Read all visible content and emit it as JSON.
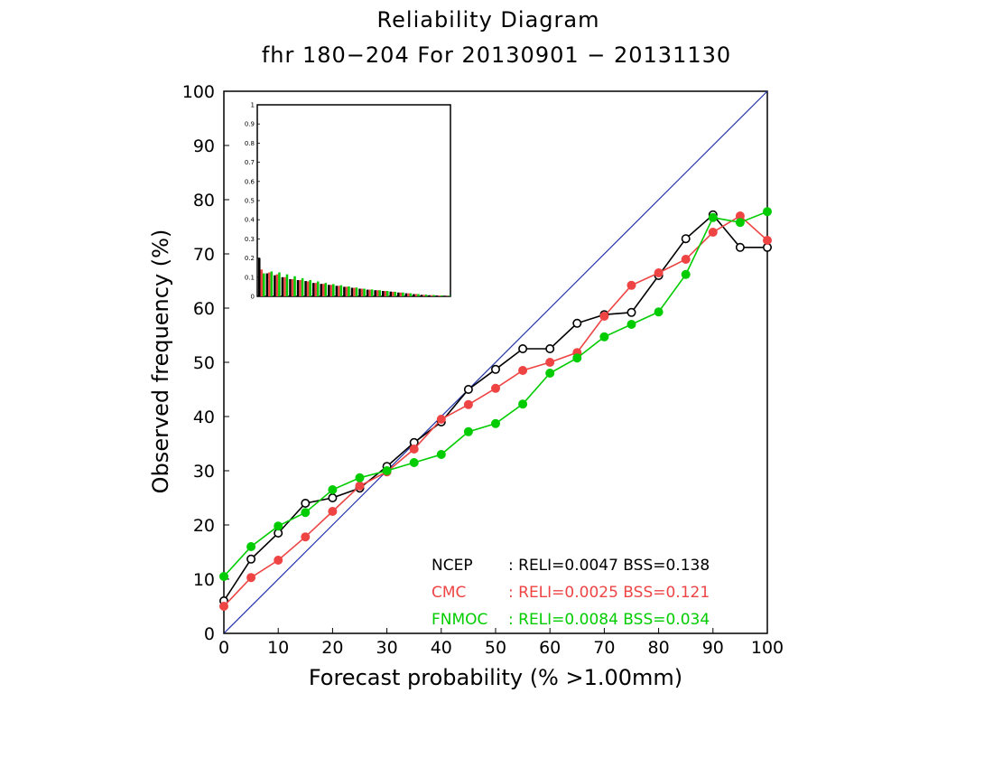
{
  "chart_data": {
    "type": "line",
    "title": "Reliability Diagram",
    "subtitle": "fhr 180−204 For 20130901 − 20131130",
    "xlabel": "Forecast probability (% >1.00mm)",
    "ylabel": "Observed frequency (%)",
    "xlim": [
      0,
      100
    ],
    "ylim": [
      0,
      100
    ],
    "x_ticks": [
      "0",
      "10",
      "20",
      "30",
      "40",
      "50",
      "60",
      "70",
      "80",
      "90",
      "100"
    ],
    "y_ticks": [
      "0",
      "10",
      "20",
      "30",
      "40",
      "50",
      "60",
      "70",
      "80",
      "90",
      "100"
    ],
    "grid": false,
    "diagonal_color": "#2233aa",
    "series": [
      {
        "name": "NCEP",
        "color": "#000000",
        "marker": "open-circle",
        "x": [
          0,
          5,
          10,
          15,
          20,
          25,
          30,
          35,
          40,
          45,
          50,
          55,
          60,
          65,
          70,
          75,
          80,
          85,
          90,
          95,
          100
        ],
        "y": [
          6,
          13.7,
          18.5,
          24,
          25,
          26.8,
          30.8,
          35.2,
          39,
          45,
          48.7,
          52.5,
          52.5,
          57.2,
          58.8,
          59.2,
          66,
          72.8,
          77.2,
          71.2,
          71.2
        ],
        "stats": ": RELI=0.0047  BSS=0.138"
      },
      {
        "name": "CMC",
        "color": "#ee4444",
        "marker": "filled-circle",
        "x": [
          0,
          5,
          10,
          15,
          20,
          25,
          30,
          35,
          40,
          45,
          50,
          55,
          60,
          65,
          70,
          75,
          80,
          85,
          90,
          95,
          100
        ],
        "y": [
          5,
          10.3,
          13.5,
          17.8,
          22.5,
          27.2,
          29.8,
          34,
          39.5,
          42.2,
          45.2,
          48.5,
          50,
          51.8,
          58.5,
          64.2,
          66.5,
          69,
          74,
          77,
          72.5
        ],
        "stats": ": RELI=0.0025  BSS=0.121"
      },
      {
        "name": "FNMOC",
        "color": "#00cc00",
        "marker": "filled-circle",
        "x": [
          0,
          5,
          10,
          15,
          20,
          25,
          30,
          35,
          40,
          45,
          50,
          55,
          60,
          65,
          70,
          75,
          80,
          85,
          90,
          95,
          100
        ],
        "y": [
          10.5,
          16,
          19.8,
          22.3,
          26.5,
          28.7,
          30,
          31.5,
          33,
          37.2,
          38.7,
          42.3,
          48,
          50.8,
          54.7,
          57,
          59.3,
          66.2,
          76.7,
          75.8,
          77.8
        ],
        "stats": ": RELI=0.0084  BSS=0.034"
      }
    ],
    "inset_histogram": {
      "ylim": [
        0,
        1
      ],
      "y_ticks": [
        "0",
        "0.1",
        "0.2",
        "0.3",
        "0.4",
        "0.5",
        "0.6",
        "0.7",
        "0.8",
        "0.9",
        "1"
      ],
      "ncep": [
        0.2,
        0.12,
        0.11,
        0.1,
        0.09,
        0.085,
        0.08,
        0.07,
        0.065,
        0.06,
        0.055,
        0.05,
        0.045,
        0.04,
        0.035,
        0.032,
        0.028,
        0.025,
        0.02,
        0.016,
        0.012,
        0.008,
        0.006,
        0.004,
        0.002
      ],
      "cmc": [
        0.14,
        0.125,
        0.115,
        0.1,
        0.09,
        0.085,
        0.078,
        0.07,
        0.065,
        0.06,
        0.055,
        0.05,
        0.045,
        0.04,
        0.035,
        0.032,
        0.028,
        0.024,
        0.02,
        0.016,
        0.012,
        0.008,
        0.006,
        0.004,
        0.002
      ],
      "fnmoc": [
        0.12,
        0.13,
        0.125,
        0.115,
        0.105,
        0.095,
        0.085,
        0.078,
        0.07,
        0.064,
        0.058,
        0.052,
        0.046,
        0.04,
        0.036,
        0.032,
        0.028,
        0.024,
        0.02,
        0.016,
        0.012,
        0.009,
        0.007,
        0.005,
        0.003
      ]
    }
  }
}
